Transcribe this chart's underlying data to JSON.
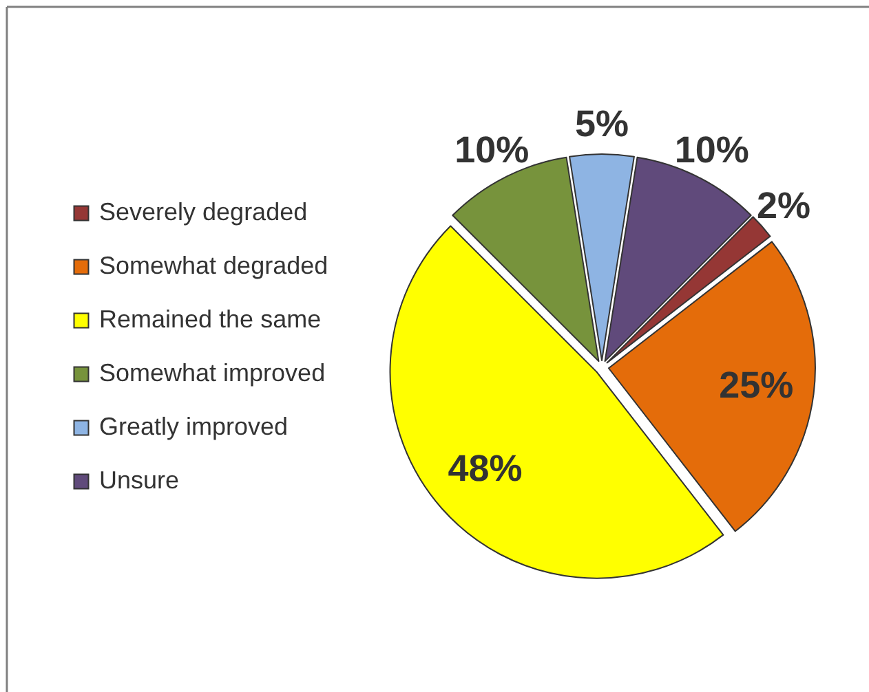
{
  "chart_data": {
    "type": "pie",
    "categories": [
      "Severely degraded",
      "Somewhat degraded",
      "Remained the same",
      "Somewhat improved",
      "Greatly improved",
      "Unsure"
    ],
    "values": [
      2,
      25,
      48,
      10,
      5,
      10
    ],
    "colors": [
      "#953735",
      "#E46C0A",
      "#FFFF00",
      "#77933C",
      "#8EB4E3",
      "#604A7B"
    ],
    "value_labels": [
      "2%",
      "25%",
      "48%",
      "10%",
      "5%",
      "10%"
    ],
    "legend": "left"
  }
}
